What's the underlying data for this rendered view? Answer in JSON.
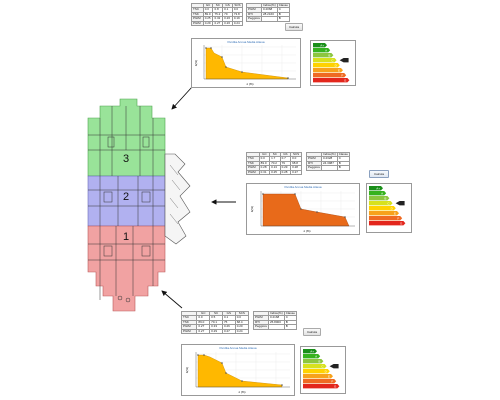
{
  "floors": [
    {
      "id": "floor-3",
      "label": "3",
      "color": "#8fe08f"
    },
    {
      "id": "floor-2",
      "label": "2",
      "color": "#a9a9ef"
    },
    {
      "id": "floor-1",
      "label": "1",
      "color": "#f09898"
    }
  ],
  "panels": [
    {
      "table": {
        "columns": [
          "",
          "GC",
          "SC",
          "GS",
          "SCS"
        ],
        "rows": [
          [
            "TSC",
            "0.0",
            "0.8",
            "0.1",
            "0.0"
          ],
          [
            "TSK",
            "89.0",
            "75.2",
            "79",
            "73.8"
          ],
          [
            "PGIM",
            "0.25",
            "0.32",
            "0.26",
            "0.19"
          ],
          [
            "PGIM",
            "0.29",
            "0.27",
            "0.26",
            "0.24"
          ]
        ]
      },
      "info": {
        "header": [
          "Indice(%)",
          "Classe"
        ],
        "rows": [
          [
            "PGIM",
            "0.2068",
            "C"
          ],
          [
            "RTI",
            "28.2160",
            "B"
          ],
          [
            "Peggiore",
            "",
            "B"
          ]
        ]
      },
      "button": "Calcola",
      "chart": {
        "title": "Perdita Annua Media Attesa",
        "xlabel": "λ (%)",
        "ylabel": "λ(%)",
        "color": "#ffb800"
      },
      "classes": [
        "A+",
        "A",
        "B",
        "C",
        "D",
        "E",
        "F",
        "G"
      ],
      "selected_class": "C"
    },
    {
      "table": {
        "columns": [
          "",
          "GC",
          "SC",
          "GS",
          "SCS"
        ],
        "rows": [
          [
            "TSC",
            "0.0",
            "1.7",
            "0.7",
            "0.0"
          ],
          [
            "TSK",
            "89.0",
            "70.2",
            "79",
            "68.8"
          ],
          [
            "PGIM",
            "0.28",
            "0.13",
            "0.29",
            "0.28"
          ],
          [
            "PGIM",
            "0.31",
            "0.25",
            "0.28",
            "0.27"
          ]
        ]
      },
      "info": {
        "header": [
          "Indice(%)",
          "Classe"
        ],
        "rows": [
          [
            "PGIM",
            "0.2328",
            "C"
          ],
          [
            "RTI",
            "24.3987",
            "B"
          ],
          [
            "Peggiore",
            "",
            "B"
          ]
        ]
      },
      "button": "Calcola",
      "chart": {
        "title": "Perdita Annua Media Attesa",
        "xlabel": "λ (%)",
        "ylabel": "λ(%)",
        "color": "#e86a1a"
      },
      "classes": [
        "A+",
        "A",
        "B",
        "C",
        "D",
        "E",
        "F",
        "G"
      ],
      "selected_class": "C"
    },
    {
      "table": {
        "columns": [
          "",
          "GC",
          "SC",
          "GS",
          "SCS"
        ],
        "rows": [
          [
            "TSC",
            "0.0",
            "0.5",
            "0.1",
            "0.0"
          ],
          [
            "TSK",
            "89.0",
            "70.1",
            "75",
            "68.4"
          ],
          [
            "PGIM",
            "0.27",
            "0.33",
            "0.26",
            "0.20"
          ],
          [
            "PGIM",
            "0.27",
            "0.29",
            "0.27",
            "0.24"
          ]
        ]
      },
      "info": {
        "header": [
          "Indice(%)",
          "Classe"
        ],
        "rows": [
          [
            "PGIM",
            "0.2168",
            "C"
          ],
          [
            "RTI",
            "25.8000",
            "B"
          ],
          [
            "Peggiore",
            "",
            "B"
          ]
        ]
      },
      "button": "Calcola",
      "chart": {
        "title": "Perdita Annua Media Attesa",
        "xlabel": "λ (%)",
        "ylabel": "λ(%)",
        "color": "#ffb800"
      },
      "classes": [
        "A+",
        "A",
        "B",
        "C",
        "D",
        "E",
        "F",
        "G"
      ],
      "selected_class": "C"
    }
  ],
  "colors": {
    "class_scale": [
      "#1a8f1a",
      "#36b21e",
      "#8cc63f",
      "#d7e11d",
      "#ffd200",
      "#f7a21b",
      "#ef6a22",
      "#e3261c"
    ],
    "arrow": "#111111"
  }
}
